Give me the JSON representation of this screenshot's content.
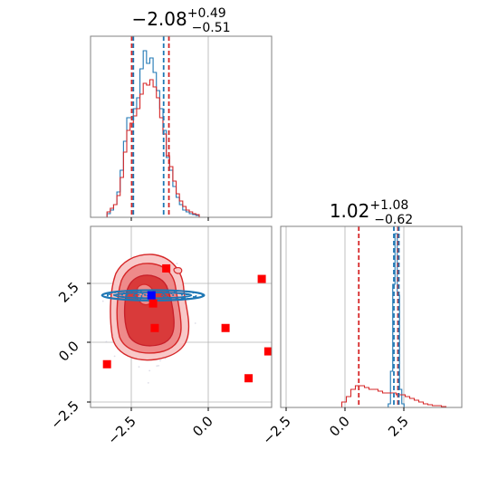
{
  "chart_data": [
    {
      "panel": "x-marginal",
      "type": "histogram",
      "title": {
        "main": "−2.08",
        "sup": "+0.49",
        "sub": "−0.51"
      },
      "xlim": [
        -4.0,
        1.5
      ],
      "grid": true,
      "series": [
        {
          "name": "",
          "color": "#1f77b4",
          "bins": [
            -3.45,
            -3.35,
            -3.25,
            -3.15,
            -3.05,
            -2.95,
            -2.85,
            -2.75,
            -2.65,
            -2.55,
            -2.45,
            -2.35,
            -2.25,
            -2.15,
            -2.05,
            -1.95,
            -1.85,
            -1.75,
            -1.65,
            -1.55,
            -1.45,
            -1.35,
            -1.25,
            -1.15,
            -1.05,
            -0.95,
            -0.85,
            -0.75
          ],
          "heights": [
            0.02,
            0.04,
            0.07,
            0.14,
            0.26,
            0.42,
            0.55,
            0.55,
            0.6,
            0.66,
            0.82,
            0.92,
            0.85,
            0.88,
            0.8,
            0.7,
            0.6,
            0.48,
            0.33,
            0.26,
            0.17,
            0.11,
            0.07,
            0.04,
            0.03,
            0.02,
            0.015,
            0.01
          ]
        },
        {
          "name": "",
          "color": "#d62728",
          "bins": [
            -3.45,
            -3.35,
            -3.25,
            -3.15,
            -3.05,
            -2.95,
            -2.85,
            -2.75,
            -2.65,
            -2.55,
            -2.45,
            -2.35,
            -2.25,
            -2.15,
            -2.05,
            -1.95,
            -1.85,
            -1.75,
            -1.65,
            -1.55,
            -1.45,
            -1.35,
            -1.25,
            -1.15,
            -1.05,
            -0.95,
            -0.85,
            -0.75
          ],
          "heights": [
            0.03,
            0.05,
            0.07,
            0.12,
            0.22,
            0.36,
            0.48,
            0.52,
            0.56,
            0.6,
            0.68,
            0.74,
            0.73,
            0.76,
            0.72,
            0.66,
            0.55,
            0.46,
            0.34,
            0.28,
            0.2,
            0.13,
            0.09,
            0.06,
            0.04,
            0.03,
            0.02,
            0.015
          ]
        }
      ],
      "vlines": [
        {
          "x": -2.75,
          "color": "#d62728",
          "style": "dashed"
        },
        {
          "x": -2.7,
          "color": "#1f77b4",
          "style": "dashed"
        },
        {
          "x": -1.78,
          "color": "#1f77b4",
          "style": "dashed"
        },
        {
          "x": -1.62,
          "color": "#d62728",
          "style": "dashed"
        }
      ]
    },
    {
      "panel": "y-marginal",
      "type": "histogram",
      "title": {
        "main": "1.02",
        "sup": "+1.08",
        "sub": "−0.62"
      },
      "xlim": [
        -3.0,
        5.0
      ],
      "xticks": [
        "−2.5",
        "0.0",
        "2.5"
      ],
      "grid": true,
      "series": [
        {
          "name": "",
          "color": "#1f77b4",
          "bins": [
            1.8,
            1.9,
            2.0,
            2.1,
            2.2,
            2.3,
            2.4
          ],
          "heights": [
            0.02,
            0.2,
            0.68,
            0.96,
            0.62,
            0.1,
            0.02
          ]
        },
        {
          "name": "",
          "color": "#d62728",
          "bins": [
            -0.2,
            0.0,
            0.2,
            0.4,
            0.6,
            0.8,
            1.0,
            1.2,
            1.4,
            1.6,
            1.8,
            2.0,
            2.2,
            2.4,
            2.6,
            2.8,
            3.0,
            3.2,
            3.4,
            3.6,
            3.8,
            4.0,
            4.2
          ],
          "heights": [
            0.03,
            0.06,
            0.1,
            0.12,
            0.12,
            0.11,
            0.1,
            0.1,
            0.09,
            0.08,
            0.08,
            0.08,
            0.07,
            0.07,
            0.06,
            0.05,
            0.04,
            0.03,
            0.02,
            0.015,
            0.01,
            0.01,
            0.005
          ]
        }
      ],
      "vlines": [
        {
          "x": 0.45,
          "color": "#d62728",
          "style": "dashed"
        },
        {
          "x": 2.0,
          "color": "#1f77b4",
          "style": "dashed"
        },
        {
          "x": 2.18,
          "color": "#d62728",
          "style": "dashed"
        },
        {
          "x": 2.22,
          "color": "#1f77b4",
          "style": "dashed"
        }
      ]
    },
    {
      "panel": "joint",
      "type": "contour-scatter",
      "xlim": [
        -4.0,
        1.5
      ],
      "ylim": [
        -2.75,
        5.0
      ],
      "xticks": [
        "−2.5",
        "0.0"
      ],
      "yticks": [
        "−2.5",
        "0.0",
        "2.5"
      ],
      "grid": true,
      "red_points": [
        [
          -3.5,
          -0.9
        ],
        [
          -2.1,
          1.7
        ],
        [
          -2.05,
          0.65
        ],
        [
          -1.7,
          3.2
        ],
        [
          0.1,
          0.65
        ],
        [
          0.8,
          -1.5
        ],
        [
          1.2,
          2.75
        ],
        [
          1.4,
          -0.35
        ]
      ],
      "blue_point": [
        -2.15,
        2.05
      ],
      "blue_band": {
        "cx": -2.1,
        "cy": 2.05,
        "rx": 1.55,
        "ry": 0.22
      }
    }
  ]
}
